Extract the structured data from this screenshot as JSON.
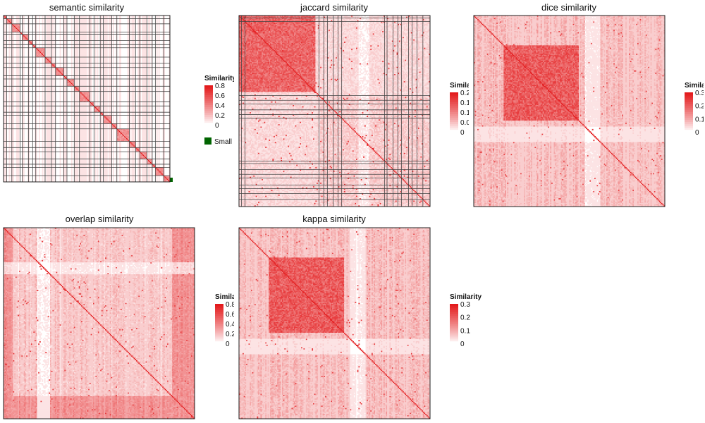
{
  "chart_data": [
    {
      "type": "heatmap",
      "title": "semantic similarity",
      "legend": {
        "title": "Similarity",
        "ticks": [
          "0.8",
          "0.6",
          "0.4",
          "0.2",
          "0"
        ],
        "max": 0.8,
        "extra_label": "Small"
      },
      "colors": {
        "high": "#e31a1c",
        "low": "#ffffff",
        "extra": "#006400"
      },
      "n_terms": 160,
      "blocks": [
        3,
        5,
        8,
        2,
        6,
        4,
        3,
        9,
        6,
        4,
        8,
        3,
        7,
        5,
        10,
        4,
        6,
        3,
        8,
        5,
        12,
        6,
        4,
        7,
        5,
        3,
        8,
        6
      ],
      "pattern": "block-diagonal"
    },
    {
      "type": "heatmap",
      "title": "jaccard similarity",
      "legend": {
        "title": "Similarity",
        "ticks": [
          "0.2",
          "0.1",
          "0.1",
          "0.0",
          "0"
        ],
        "max": 0.2
      },
      "colors": {
        "high": "#e31a1c",
        "low": "#ffffff"
      },
      "n_terms": 160,
      "blocks": [
        2,
        3,
        62,
        4,
        3,
        5,
        4,
        3,
        36,
        2,
        5,
        4,
        3,
        6,
        3,
        4,
        5,
        6
      ],
      "pattern": "two-clusters"
    },
    {
      "type": "heatmap",
      "title": "dice similarity",
      "legend": {
        "title": "Similarity",
        "ticks": [
          "0.3",
          "0.2",
          "0.1",
          "0"
        ],
        "max": 0.3
      },
      "colors": {
        "high": "#e31a1c",
        "low": "#ffffff"
      },
      "n_terms": 160,
      "pattern": "central-cluster"
    },
    {
      "type": "heatmap",
      "title": "overlap similarity",
      "legend": {
        "title": "Similarity",
        "ticks": [
          "0.8",
          "0.6",
          "0.4",
          "0.2",
          "0"
        ],
        "max": 0.8
      },
      "colors": {
        "high": "#e31a1c",
        "low": "#ffffff"
      },
      "n_terms": 160,
      "pattern": "edge-bands"
    },
    {
      "type": "heatmap",
      "title": "kappa similarity",
      "legend": {
        "title": "Similarity",
        "ticks": [
          "0.3",
          "0.2",
          "0.1",
          "0"
        ],
        "max": 0.3
      },
      "colors": {
        "high": "#e31a1c",
        "low": "#ffffff"
      },
      "n_terms": 160,
      "pattern": "central-cluster"
    }
  ]
}
